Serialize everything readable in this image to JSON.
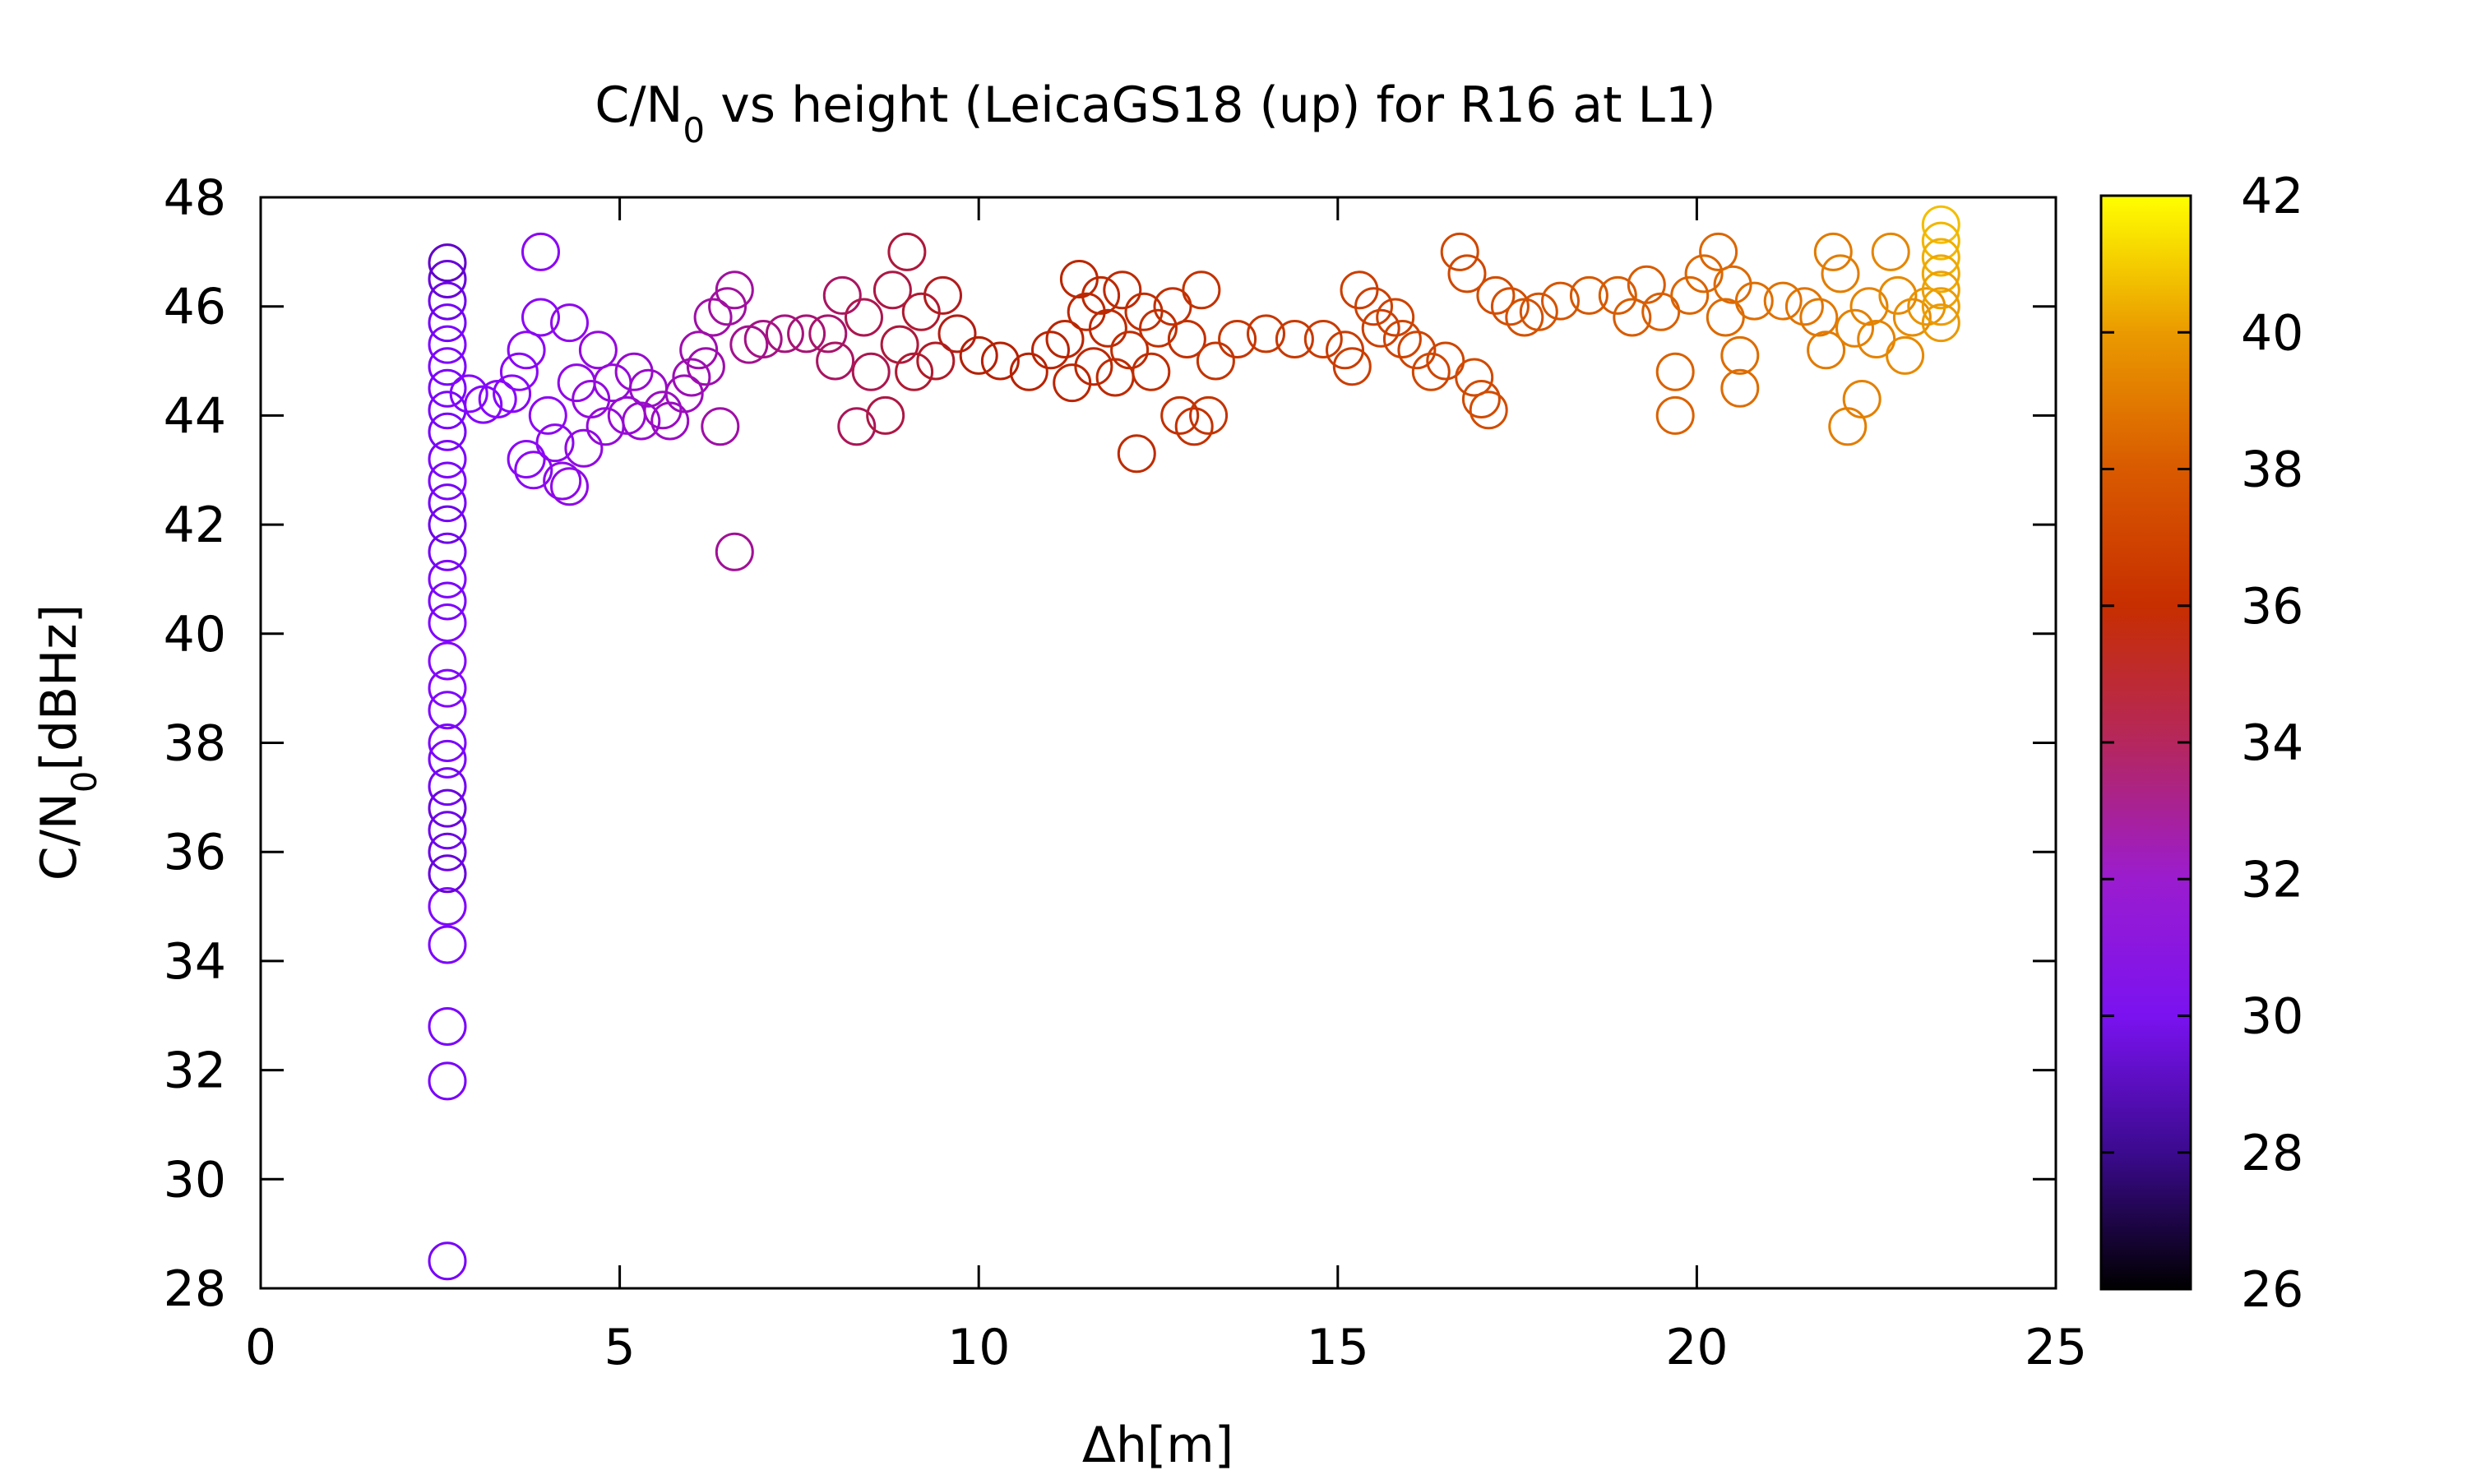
{
  "chart_data": {
    "type": "scatter",
    "title_parts": [
      "C/N",
      "0",
      " vs height (LeicaGS18 (up) for R16 at L1)"
    ],
    "xlabel": "Δh[m]",
    "ylabel_parts": [
      "C/N",
      "0",
      "[dBHz]"
    ],
    "xlim": [
      0,
      25
    ],
    "ylim": [
      28,
      48
    ],
    "xticks": [
      "0",
      "5",
      "10",
      "15",
      "20",
      "25"
    ],
    "yticks": [
      "28",
      "30",
      "32",
      "34",
      "36",
      "38",
      "40",
      "42",
      "44",
      "46",
      "48"
    ],
    "colorbar": {
      "range": [
        26,
        42
      ],
      "ticks": [
        "26",
        "28",
        "30",
        "32",
        "34",
        "36",
        "38",
        "40",
        "42"
      ],
      "palette": "gnuplot-pm3d"
    },
    "marker": "open-circle",
    "grid": false,
    "legend": "none",
    "points": [
      [
        2.6,
        28.5,
        29.5
      ],
      [
        2.6,
        31.8,
        29.6
      ],
      [
        2.6,
        32.8,
        29.7
      ],
      [
        2.6,
        34.3,
        29.8
      ],
      [
        2.6,
        35.0,
        30.0
      ],
      [
        2.6,
        35.6,
        28.6
      ],
      [
        2.6,
        36.0,
        28.8
      ],
      [
        2.6,
        36.4,
        29.0
      ],
      [
        2.6,
        36.8,
        28.7
      ],
      [
        2.6,
        37.2,
        29.2
      ],
      [
        2.6,
        37.7,
        29.6
      ],
      [
        2.6,
        38.0,
        29.8
      ],
      [
        2.6,
        38.6,
        29.9
      ],
      [
        2.6,
        39.0,
        30.1
      ],
      [
        2.6,
        39.5,
        30.2
      ],
      [
        2.6,
        40.2,
        30.0
      ],
      [
        2.6,
        40.6,
        29.7
      ],
      [
        2.6,
        41.0,
        29.9
      ],
      [
        2.6,
        41.5,
        29.3
      ],
      [
        2.6,
        42.0,
        28.9
      ],
      [
        2.6,
        42.4,
        29.4
      ],
      [
        2.6,
        42.8,
        29.7
      ],
      [
        2.6,
        43.2,
        29.8
      ],
      [
        2.6,
        43.7,
        29.5
      ],
      [
        2.6,
        44.1,
        29.6
      ],
      [
        2.6,
        44.5,
        29.8
      ],
      [
        2.6,
        44.9,
        29.7
      ],
      [
        2.6,
        45.3,
        29.9
      ],
      [
        2.6,
        45.7,
        29.4
      ],
      [
        2.6,
        46.1,
        29.0
      ],
      [
        2.6,
        46.5,
        28.6
      ],
      [
        2.6,
        46.8,
        28.3
      ],
      [
        2.9,
        44.4,
        30.2
      ],
      [
        3.1,
        44.2,
        30.3
      ],
      [
        3.3,
        44.3,
        30.4
      ],
      [
        3.5,
        44.4,
        30.5
      ],
      [
        3.6,
        44.8,
        30.6
      ],
      [
        3.7,
        45.2,
        30.7
      ],
      [
        3.7,
        43.2,
        30.6
      ],
      [
        3.8,
        43.0,
        30.7
      ],
      [
        3.9,
        45.8,
        30.7
      ],
      [
        3.9,
        47.0,
        30.7
      ],
      [
        4.0,
        44.0,
        30.8
      ],
      [
        4.1,
        43.5,
        30.9
      ],
      [
        4.2,
        42.8,
        31.0
      ],
      [
        4.3,
        45.7,
        31.0
      ],
      [
        4.3,
        42.7,
        31.1
      ],
      [
        4.4,
        44.6,
        31.1
      ],
      [
        4.5,
        43.4,
        31.2
      ],
      [
        4.6,
        44.3,
        31.3
      ],
      [
        4.7,
        45.2,
        31.3
      ],
      [
        4.8,
        43.8,
        31.4
      ],
      [
        4.9,
        44.6,
        31.4
      ],
      [
        5.1,
        44.0,
        31.5
      ],
      [
        5.2,
        44.8,
        31.6
      ],
      [
        5.3,
        43.9,
        31.6
      ],
      [
        5.4,
        44.5,
        31.7
      ],
      [
        5.6,
        44.1,
        31.8
      ],
      [
        5.7,
        43.9,
        31.8
      ],
      [
        5.9,
        44.4,
        31.9
      ],
      [
        6.0,
        44.7,
        32.0
      ],
      [
        6.1,
        45.2,
        32.1
      ],
      [
        6.2,
        44.9,
        32.1
      ],
      [
        6.3,
        45.8,
        32.2
      ],
      [
        6.4,
        43.8,
        32.2
      ],
      [
        6.5,
        46.0,
        32.3
      ],
      [
        6.6,
        46.3,
        32.3
      ],
      [
        6.6,
        41.5,
        32.4
      ],
      [
        6.8,
        45.3,
        32.5
      ],
      [
        7.0,
        45.4,
        32.6
      ],
      [
        7.3,
        45.5,
        32.7
      ],
      [
        7.6,
        45.5,
        32.8
      ],
      [
        7.9,
        45.5,
        32.9
      ],
      [
        8.0,
        45.0,
        33.0
      ],
      [
        8.1,
        46.2,
        33.0
      ],
      [
        8.3,
        43.8,
        33.1
      ],
      [
        8.4,
        45.8,
        33.2
      ],
      [
        8.5,
        44.8,
        33.2
      ],
      [
        8.7,
        44.0,
        33.3
      ],
      [
        8.8,
        46.3,
        33.3
      ],
      [
        8.9,
        45.3,
        33.4
      ],
      [
        9.0,
        47.0,
        33.4
      ],
      [
        9.1,
        44.8,
        33.5
      ],
      [
        9.2,
        45.9,
        33.5
      ],
      [
        9.4,
        45.0,
        33.6
      ],
      [
        9.5,
        46.2,
        33.7
      ],
      [
        9.7,
        45.5,
        33.8
      ],
      [
        10.0,
        45.1,
        34.0
      ],
      [
        10.3,
        45.0,
        34.1
      ],
      [
        10.7,
        44.8,
        34.2
      ],
      [
        11.0,
        45.2,
        34.3
      ],
      [
        11.2,
        45.4,
        34.4
      ],
      [
        11.3,
        44.6,
        34.5
      ],
      [
        11.4,
        46.5,
        34.5
      ],
      [
        11.5,
        45.9,
        34.6
      ],
      [
        11.6,
        44.9,
        34.6
      ],
      [
        11.7,
        46.2,
        34.7
      ],
      [
        11.8,
        45.6,
        34.7
      ],
      [
        11.9,
        44.7,
        34.8
      ],
      [
        12.0,
        46.3,
        34.8
      ],
      [
        12.1,
        45.2,
        34.9
      ],
      [
        12.2,
        43.3,
        34.9
      ],
      [
        12.3,
        45.9,
        35.0
      ],
      [
        12.4,
        44.8,
        35.0
      ],
      [
        12.5,
        45.6,
        35.1
      ],
      [
        12.7,
        46.0,
        35.1
      ],
      [
        12.8,
        44.0,
        35.2
      ],
      [
        12.9,
        45.4,
        35.2
      ],
      [
        13.0,
        43.8,
        35.3
      ],
      [
        13.1,
        46.3,
        35.3
      ],
      [
        13.2,
        44.0,
        35.4
      ],
      [
        13.3,
        45.0,
        35.4
      ],
      [
        13.6,
        45.4,
        35.5
      ],
      [
        14.0,
        45.5,
        35.6
      ],
      [
        14.4,
        45.4,
        35.7
      ],
      [
        14.8,
        45.4,
        35.8
      ],
      [
        15.1,
        45.2,
        35.9
      ],
      [
        15.2,
        44.9,
        36.0
      ],
      [
        15.3,
        46.3,
        36.0
      ],
      [
        15.5,
        46.0,
        36.1
      ],
      [
        15.6,
        45.6,
        36.1
      ],
      [
        15.8,
        45.8,
        36.2
      ],
      [
        15.9,
        45.4,
        36.3
      ],
      [
        16.1,
        45.2,
        36.3
      ],
      [
        16.3,
        44.8,
        36.4
      ],
      [
        16.5,
        45.0,
        36.4
      ],
      [
        16.7,
        47.0,
        36.5
      ],
      [
        16.8,
        46.6,
        36.5
      ],
      [
        16.9,
        44.7,
        36.6
      ],
      [
        17.0,
        44.3,
        36.6
      ],
      [
        17.1,
        44.1,
        36.7
      ],
      [
        17.2,
        46.2,
        36.7
      ],
      [
        17.4,
        46.0,
        36.8
      ],
      [
        17.6,
        45.8,
        36.9
      ],
      [
        17.8,
        45.9,
        37.0
      ],
      [
        18.1,
        46.1,
        37.1
      ],
      [
        18.5,
        46.2,
        37.2
      ],
      [
        18.9,
        46.2,
        37.3
      ],
      [
        19.1,
        45.8,
        37.4
      ],
      [
        19.3,
        46.4,
        37.4
      ],
      [
        19.5,
        45.9,
        37.5
      ],
      [
        19.7,
        44.0,
        37.6
      ],
      [
        19.7,
        44.8,
        37.6
      ],
      [
        19.9,
        46.2,
        37.7
      ],
      [
        20.1,
        46.6,
        37.8
      ],
      [
        20.3,
        47.0,
        37.8
      ],
      [
        20.4,
        45.8,
        37.9
      ],
      [
        20.5,
        46.4,
        37.9
      ],
      [
        20.6,
        44.5,
        38.0
      ],
      [
        20.6,
        45.1,
        38.0
      ],
      [
        20.8,
        46.1,
        38.1
      ],
      [
        21.2,
        46.1,
        38.2
      ],
      [
        21.5,
        46.0,
        38.3
      ],
      [
        21.7,
        45.8,
        38.4
      ],
      [
        21.8,
        45.2,
        38.5
      ],
      [
        21.9,
        47.0,
        38.5
      ],
      [
        22.0,
        46.6,
        38.6
      ],
      [
        22.1,
        43.8,
        38.6
      ],
      [
        22.2,
        45.6,
        38.7
      ],
      [
        22.3,
        44.3,
        38.7
      ],
      [
        22.4,
        46.0,
        38.8
      ],
      [
        22.5,
        45.4,
        38.8
      ],
      [
        22.7,
        47.0,
        38.9
      ],
      [
        22.8,
        46.2,
        39.0
      ],
      [
        22.9,
        45.1,
        39.0
      ],
      [
        23.0,
        45.8,
        39.1
      ],
      [
        23.2,
        46.0,
        39.3
      ],
      [
        23.4,
        47.5,
        40.5
      ],
      [
        23.4,
        47.2,
        40.3
      ],
      [
        23.4,
        46.9,
        40.1
      ],
      [
        23.4,
        46.6,
        39.9
      ],
      [
        23.4,
        46.3,
        39.7
      ],
      [
        23.4,
        46.0,
        39.6
      ],
      [
        23.4,
        45.7,
        39.5
      ]
    ]
  }
}
